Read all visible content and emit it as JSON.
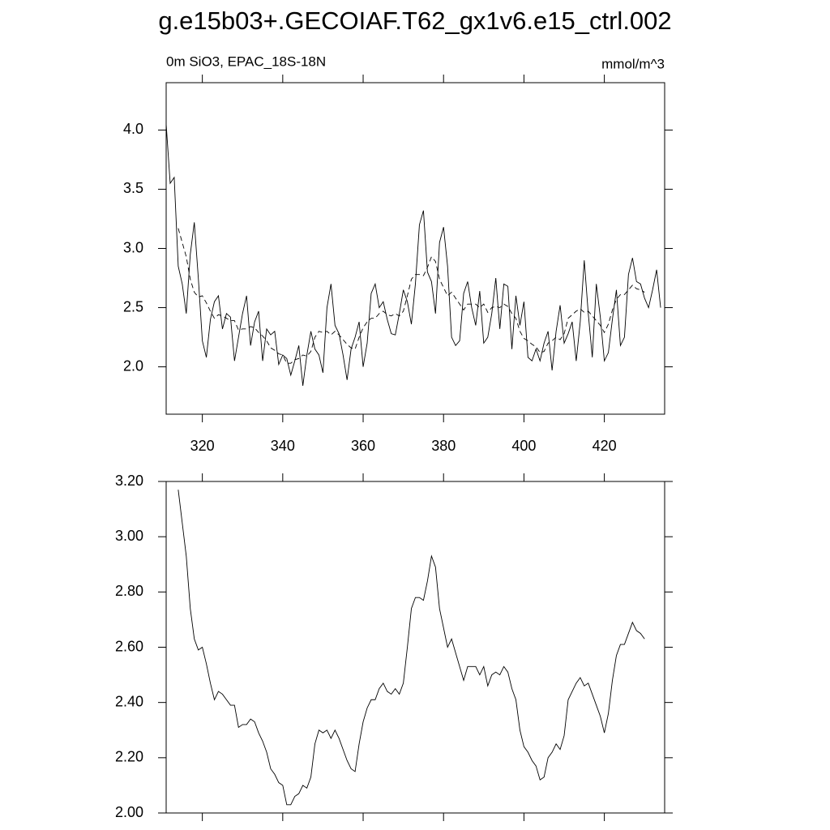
{
  "chart_data": [
    {
      "type": "line",
      "title": "g.e15b03+.GECOIAF.T62_gx1v6.e15_ctrl.002",
      "subtitle": "0m SiO3, EPAC_18S-18N",
      "units": "mmol/m^3",
      "x": [
        311,
        312,
        313,
        314,
        315,
        316,
        317,
        318,
        319,
        320,
        321,
        322,
        323,
        324,
        325,
        326,
        327,
        328,
        329,
        330,
        331,
        332,
        333,
        334,
        335,
        336,
        337,
        338,
        339,
        340,
        341,
        342,
        343,
        344,
        345,
        346,
        347,
        348,
        349,
        350,
        351,
        352,
        353,
        354,
        355,
        356,
        357,
        358,
        359,
        360,
        361,
        362,
        363,
        364,
        365,
        366,
        367,
        368,
        369,
        370,
        371,
        372,
        373,
        374,
        375,
        376,
        377,
        378,
        379,
        380,
        381,
        382,
        383,
        384,
        385,
        386,
        387,
        388,
        389,
        390,
        391,
        392,
        393,
        394,
        395,
        396,
        397,
        398,
        399,
        400,
        401,
        402,
        403,
        404,
        405,
        406,
        407,
        408,
        409,
        410,
        411,
        412,
        413,
        414,
        415,
        416,
        417,
        418,
        419,
        420,
        421,
        422,
        423,
        424,
        425,
        426,
        427,
        428,
        429,
        430,
        431,
        432,
        433,
        434
      ],
      "series": [
        {
          "color": "#000000",
          "dash": false,
          "values": [
            4.05,
            3.55,
            3.6,
            2.85,
            2.7,
            2.45,
            2.95,
            3.22,
            2.75,
            2.22,
            2.08,
            2.4,
            2.55,
            2.6,
            2.32,
            2.45,
            2.42,
            2.05,
            2.25,
            2.45,
            2.6,
            2.18,
            2.38,
            2.47,
            2.05,
            2.32,
            2.27,
            2.3,
            2.02,
            2.1,
            2.07,
            1.93,
            2.05,
            2.18,
            1.84,
            2.1,
            2.3,
            2.15,
            2.1,
            1.95,
            2.5,
            2.7,
            2.35,
            2.28,
            2.1,
            1.89,
            2.15,
            2.25,
            2.38,
            2.0,
            2.2,
            2.62,
            2.7,
            2.5,
            2.55,
            2.4,
            2.28,
            2.27,
            2.45,
            2.65,
            2.55,
            2.36,
            2.7,
            3.2,
            3.32,
            2.8,
            2.72,
            2.45,
            3.05,
            3.18,
            2.85,
            2.25,
            2.18,
            2.22,
            2.62,
            2.72,
            2.5,
            2.35,
            2.64,
            2.2,
            2.25,
            2.45,
            2.75,
            2.32,
            2.7,
            2.68,
            2.15,
            2.6,
            2.35,
            2.55,
            2.08,
            2.05,
            2.15,
            2.05,
            2.2,
            2.3,
            1.97,
            2.3,
            2.52,
            2.2,
            2.28,
            2.38,
            2.05,
            2.38,
            2.9,
            2.45,
            2.08,
            2.7,
            2.42,
            2.05,
            2.12,
            2.4,
            2.65,
            2.18,
            2.25,
            2.78,
            2.92,
            2.72,
            2.7,
            2.58,
            2.5,
            2.65,
            2.82,
            2.5
          ]
        },
        {
          "color": "#000000",
          "dash": true,
          "values": [
            null,
            null,
            null,
            3.17,
            3.05,
            2.93,
            2.74,
            2.63,
            2.59,
            2.6,
            2.54,
            2.47,
            2.41,
            2.44,
            2.43,
            2.41,
            2.39,
            2.39,
            2.31,
            2.32,
            2.32,
            2.34,
            2.33,
            2.29,
            2.26,
            2.22,
            2.16,
            2.14,
            2.11,
            2.1,
            2.03,
            2.03,
            2.06,
            2.07,
            2.1,
            2.09,
            2.13,
            2.25,
            2.3,
            2.29,
            2.3,
            2.27,
            2.3,
            2.27,
            2.23,
            2.19,
            2.16,
            2.15,
            2.25,
            2.33,
            2.38,
            2.41,
            2.41,
            2.45,
            2.47,
            2.44,
            2.43,
            2.45,
            2.43,
            2.47,
            2.6,
            2.74,
            2.78,
            2.78,
            2.77,
            2.84,
            2.93,
            2.89,
            2.74,
            2.67,
            2.6,
            2.63,
            2.58,
            2.53,
            2.48,
            2.53,
            2.53,
            2.53,
            2.5,
            2.53,
            2.46,
            2.5,
            2.51,
            2.5,
            2.53,
            2.51,
            2.45,
            2.41,
            2.3,
            2.24,
            2.22,
            2.19,
            2.17,
            2.12,
            2.13,
            2.2,
            2.22,
            2.25,
            2.23,
            2.28,
            2.41,
            2.44,
            2.47,
            2.49,
            2.46,
            2.47,
            2.43,
            2.39,
            2.35,
            2.29,
            2.36,
            2.48,
            2.57,
            2.61,
            2.61,
            2.65,
            2.69,
            2.66,
            2.65,
            2.63,
            null,
            null,
            null,
            null
          ]
        }
      ],
      "xlim": [
        311,
        435
      ],
      "xticks": [
        320,
        340,
        360,
        380,
        400,
        420
      ],
      "ylim": [
        1.6,
        4.4
      ],
      "yticks": [
        {
          "value": 2,
          "label": "2.0"
        },
        2.5,
        {
          "value": 3,
          "label": "3.0"
        },
        3.5,
        {
          "value": 4,
          "label": "4.0"
        }
      ]
    },
    {
      "type": "line",
      "x": [
        311,
        312,
        313,
        314,
        315,
        316,
        317,
        318,
        319,
        320,
        321,
        322,
        323,
        324,
        325,
        326,
        327,
        328,
        329,
        330,
        331,
        332,
        333,
        334,
        335,
        336,
        337,
        338,
        339,
        340,
        341,
        342,
        343,
        344,
        345,
        346,
        347,
        348,
        349,
        350,
        351,
        352,
        353,
        354,
        355,
        356,
        357,
        358,
        359,
        360,
        361,
        362,
        363,
        364,
        365,
        366,
        367,
        368,
        369,
        370,
        371,
        372,
        373,
        374,
        375,
        376,
        377,
        378,
        379,
        380,
        381,
        382,
        383,
        384,
        385,
        386,
        387,
        388,
        389,
        390,
        391,
        392,
        393,
        394,
        395,
        396,
        397,
        398,
        399,
        400,
        401,
        402,
        403,
        404,
        405,
        406,
        407,
        408,
        409,
        410,
        411,
        412,
        413,
        414,
        415,
        416,
        417,
        418,
        419,
        420,
        421,
        422,
        423,
        424,
        425,
        426,
        427,
        428,
        429,
        430,
        431,
        432,
        433,
        434
      ],
      "series": [
        {
          "color": "#000000",
          "dash": false,
          "values": [
            null,
            null,
            null,
            3.17,
            3.05,
            2.93,
            2.74,
            2.63,
            2.59,
            2.6,
            2.54,
            2.47,
            2.41,
            2.44,
            2.43,
            2.41,
            2.39,
            2.39,
            2.31,
            2.32,
            2.32,
            2.34,
            2.33,
            2.29,
            2.26,
            2.22,
            2.16,
            2.14,
            2.11,
            2.1,
            2.03,
            2.03,
            2.06,
            2.07,
            2.1,
            2.09,
            2.13,
            2.25,
            2.3,
            2.29,
            2.3,
            2.27,
            2.3,
            2.27,
            2.23,
            2.19,
            2.16,
            2.15,
            2.25,
            2.33,
            2.38,
            2.41,
            2.41,
            2.45,
            2.47,
            2.44,
            2.43,
            2.45,
            2.43,
            2.47,
            2.6,
            2.74,
            2.78,
            2.78,
            2.77,
            2.84,
            2.93,
            2.89,
            2.74,
            2.67,
            2.6,
            2.63,
            2.58,
            2.53,
            2.48,
            2.53,
            2.53,
            2.53,
            2.5,
            2.53,
            2.46,
            2.5,
            2.51,
            2.5,
            2.53,
            2.51,
            2.45,
            2.41,
            2.3,
            2.24,
            2.22,
            2.19,
            2.17,
            2.12,
            2.13,
            2.2,
            2.22,
            2.25,
            2.23,
            2.28,
            2.41,
            2.44,
            2.47,
            2.49,
            2.46,
            2.47,
            2.43,
            2.39,
            2.35,
            2.29,
            2.36,
            2.48,
            2.57,
            2.61,
            2.61,
            2.65,
            2.69,
            2.66,
            2.65,
            2.63,
            null,
            null,
            null,
            null
          ]
        }
      ],
      "xlim": [
        311,
        435
      ],
      "xticks": [
        320,
        340,
        360,
        380,
        400,
        420
      ],
      "ylim": [
        2,
        3.2
      ],
      "yticks": [
        {
          "value": 2,
          "label": "2.00"
        },
        {
          "value": 2.2,
          "label": "2.20"
        },
        {
          "value": 2.4,
          "label": "2.40"
        },
        {
          "value": 2.6,
          "label": "2.60"
        },
        {
          "value": 2.8,
          "label": "2.80"
        },
        {
          "value": 3,
          "label": "3.00"
        },
        {
          "value": 3.2,
          "label": "3.20"
        }
      ]
    }
  ]
}
